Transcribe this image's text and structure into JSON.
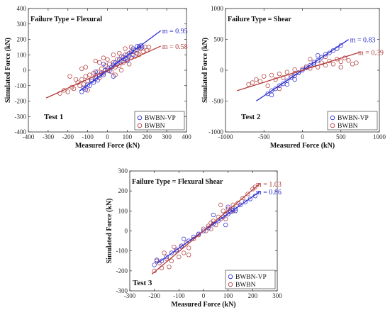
{
  "chart_data": [
    {
      "type": "scatter",
      "panel": "Test 1",
      "test_label": "Test 1",
      "annotation": "Failure Type = Flexural",
      "xlabel": "Measured Force (kN)",
      "ylabel": "Simulated Force (kN)",
      "xlim": [
        -400,
        400
      ],
      "ylim": [
        -400,
        400
      ],
      "xticks": [
        -400,
        -300,
        -200,
        -100,
        0,
        100,
        200,
        300,
        400
      ],
      "yticks": [
        -400,
        -300,
        -200,
        -100,
        0,
        100,
        200,
        300,
        400
      ],
      "legend": "bottom-right",
      "series": [
        {
          "name": "BWBN-VP",
          "color": "#2b2bd1",
          "slope_label": "m = 0.95",
          "fit": {
            "slope": 0.95,
            "intercept": 0,
            "x_range": [
              -140,
              270
            ]
          },
          "points": [
            [
              -130,
              -140
            ],
            [
              -120,
              -115
            ],
            [
              -110,
              -125
            ],
            [
              -100,
              -95
            ],
            [
              -90,
              -100
            ],
            [
              -80,
              -70
            ],
            [
              -70,
              -80
            ],
            [
              -60,
              -55
            ],
            [
              -50,
              -65
            ],
            [
              -40,
              -35
            ],
            [
              -30,
              -20
            ],
            [
              -20,
              -30
            ],
            [
              -10,
              0
            ],
            [
              0,
              10
            ],
            [
              10,
              -5
            ],
            [
              20,
              20
            ],
            [
              30,
              35
            ],
            [
              40,
              50
            ],
            [
              50,
              40
            ],
            [
              60,
              70
            ],
            [
              70,
              60
            ],
            [
              80,
              85
            ],
            [
              90,
              75
            ],
            [
              100,
              100
            ],
            [
              110,
              90
            ],
            [
              120,
              120
            ],
            [
              130,
              140
            ],
            [
              140,
              130
            ],
            [
              150,
              155
            ],
            [
              160,
              145
            ],
            [
              170,
              160
            ],
            [
              -60,
              -10
            ],
            [
              -20,
              40
            ],
            [
              30,
              -40
            ],
            [
              100,
              60
            ],
            [
              130,
              100
            ],
            [
              160,
              155
            ],
            [
              175,
              150
            ]
          ]
        },
        {
          "name": "BWBN",
          "color": "#b33a3a",
          "slope_label": "m = 0.58",
          "fit": {
            "slope": 0.58,
            "intercept": 0,
            "x_range": [
              -310,
              270
            ]
          },
          "points": [
            [
              -240,
              -150
            ],
            [
              -220,
              -130
            ],
            [
              -200,
              -140
            ],
            [
              -180,
              -110
            ],
            [
              -170,
              -120
            ],
            [
              -150,
              -80
            ],
            [
              -140,
              -100
            ],
            [
              -130,
              -60
            ],
            [
              -120,
              -90
            ],
            [
              -110,
              -40
            ],
            [
              -100,
              -70
            ],
            [
              -90,
              -30
            ],
            [
              -80,
              -60
            ],
            [
              -70,
              -20
            ],
            [
              -60,
              -40
            ],
            [
              -50,
              -10
            ],
            [
              -40,
              -50
            ],
            [
              -30,
              10
            ],
            [
              -20,
              -20
            ],
            [
              -10,
              30
            ],
            [
              0,
              0
            ],
            [
              10,
              40
            ],
            [
              20,
              -10
            ],
            [
              30,
              50
            ],
            [
              40,
              20
            ],
            [
              50,
              70
            ],
            [
              60,
              30
            ],
            [
              70,
              90
            ],
            [
              80,
              50
            ],
            [
              90,
              100
            ],
            [
              100,
              70
            ],
            [
              110,
              110
            ],
            [
              120,
              80
            ],
            [
              130,
              120
            ],
            [
              140,
              90
            ],
            [
              150,
              130
            ],
            [
              160,
              100
            ],
            [
              170,
              140
            ],
            [
              180,
              120
            ],
            [
              190,
              150
            ],
            [
              200,
              130
            ],
            [
              210,
              150
            ],
            [
              -190,
              -40
            ],
            [
              -130,
              10
            ],
            [
              -160,
              -60
            ],
            [
              -60,
              60
            ],
            [
              -20,
              80
            ],
            [
              40,
              -30
            ],
            [
              60,
              110
            ],
            [
              90,
              140
            ],
            [
              30,
              100
            ],
            [
              -100,
              -130
            ],
            [
              -110,
              20
            ],
            [
              -40,
              50
            ],
            [
              0,
              70
            ],
            [
              120,
              150
            ],
            [
              150,
              110
            ],
            [
              110,
              40
            ],
            [
              70,
              0
            ]
          ]
        }
      ]
    },
    {
      "type": "scatter",
      "panel": "Test 2",
      "test_label": "Test 2",
      "annotation": "Failure Type = Shear",
      "xlabel": "Measured Force (kN)",
      "ylabel": "Simulated Force (kN)",
      "xlim": [
        -1000,
        1000
      ],
      "ylim": [
        -1000,
        1000
      ],
      "xticks": [
        -1000,
        -500,
        0,
        500,
        1000
      ],
      "yticks": [
        -1000,
        -500,
        0,
        500,
        1000
      ],
      "legend": "bottom-right",
      "series": [
        {
          "name": "BWBN-VP",
          "color": "#2b2bd1",
          "slope_label": "m = 0.83",
          "fit": {
            "slope": 0.83,
            "intercept": 0,
            "x_range": [
              -600,
              600
            ]
          },
          "points": [
            [
              -450,
              -380
            ],
            [
              -400,
              -330
            ],
            [
              -350,
              -300
            ],
            [
              -300,
              -250
            ],
            [
              -250,
              -220
            ],
            [
              -200,
              -170
            ],
            [
              -150,
              -120
            ],
            [
              -100,
              -90
            ],
            [
              -50,
              -40
            ],
            [
              0,
              0
            ],
            [
              50,
              40
            ],
            [
              100,
              80
            ],
            [
              150,
              130
            ],
            [
              200,
              160
            ],
            [
              250,
              210
            ],
            [
              300,
              260
            ],
            [
              350,
              280
            ],
            [
              400,
              320
            ],
            [
              450,
              350
            ],
            [
              500,
              400
            ],
            [
              -200,
              -230
            ],
            [
              -100,
              -150
            ],
            [
              150,
              100
            ],
            [
              200,
              240
            ],
            [
              -400,
              -400
            ]
          ]
        },
        {
          "name": "BWBN",
          "color": "#b33a3a",
          "slope_label": "m = 0.39",
          "fit": {
            "slope": 0.39,
            "intercept": 0,
            "x_range": [
              -850,
              750
            ]
          },
          "points": [
            [
              -650,
              -200
            ],
            [
              -600,
              -150
            ],
            [
              -550,
              -180
            ],
            [
              -500,
              -100
            ],
            [
              -450,
              -250
            ],
            [
              -400,
              -80
            ],
            [
              -350,
              -150
            ],
            [
              -300,
              -60
            ],
            [
              -250,
              -120
            ],
            [
              -200,
              -30
            ],
            [
              -150,
              -90
            ],
            [
              -100,
              10
            ],
            [
              -50,
              -40
            ],
            [
              0,
              20
            ],
            [
              50,
              60
            ],
            [
              100,
              30
            ],
            [
              150,
              90
            ],
            [
              200,
              50
            ],
            [
              250,
              120
            ],
            [
              300,
              80
            ],
            [
              350,
              150
            ],
            [
              400,
              100
            ],
            [
              450,
              180
            ],
            [
              500,
              140
            ],
            [
              550,
              200
            ],
            [
              600,
              160
            ],
            [
              650,
              100
            ],
            [
              700,
              120
            ],
            [
              -700,
              -230
            ],
            [
              -300,
              -300
            ],
            [
              100,
              180
            ],
            [
              300,
              220
            ],
            [
              500,
              50
            ],
            [
              -100,
              -50
            ]
          ]
        }
      ]
    },
    {
      "type": "scatter",
      "panel": "Test 3",
      "test_label": "Test 3",
      "annotation": "Failure Type = Flexural Shear",
      "xlabel": "Measured Force (kN)",
      "ylabel": "Simulated Force (kN)",
      "xlim": [
        -300,
        300
      ],
      "ylim": [
        -300,
        300
      ],
      "xticks": [
        -300,
        -200,
        -100,
        0,
        100,
        200,
        300
      ],
      "yticks": [
        -300,
        -200,
        -100,
        0,
        100,
        200,
        300
      ],
      "legend": "bottom-right",
      "series": [
        {
          "name": "BWBN-VP",
          "color": "#2b2bd1",
          "slope_label": "m = 0.86",
          "fit": {
            "slope": 0.86,
            "intercept": 0,
            "x_range": [
              -190,
              230
            ]
          },
          "points": [
            [
              -190,
              -145
            ],
            [
              -170,
              -150
            ],
            [
              -150,
              -130
            ],
            [
              -130,
              -110
            ],
            [
              -110,
              -95
            ],
            [
              -90,
              -75
            ],
            [
              -80,
              -40
            ],
            [
              -60,
              -50
            ],
            [
              -40,
              -30
            ],
            [
              -20,
              -15
            ],
            [
              0,
              0
            ],
            [
              20,
              15
            ],
            [
              40,
              35
            ],
            [
              60,
              50
            ],
            [
              80,
              70
            ],
            [
              90,
              30
            ],
            [
              100,
              85
            ],
            [
              110,
              95
            ],
            [
              120,
              105
            ],
            [
              130,
              110
            ],
            [
              150,
              130
            ],
            [
              170,
              145
            ],
            [
              190,
              160
            ],
            [
              210,
              175
            ],
            [
              -200,
              -170
            ],
            [
              40,
              80
            ],
            [
              100,
              120
            ],
            [
              130,
              100
            ]
          ]
        },
        {
          "name": "BWBN",
          "color": "#b33a3a",
          "slope_label": "m = 1.03",
          "fit": {
            "slope": 1.03,
            "intercept": 0,
            "x_range": [
              -210,
              230
            ]
          },
          "points": [
            [
              -200,
              -200
            ],
            [
              -180,
              -160
            ],
            [
              -170,
              -185
            ],
            [
              -150,
              -140
            ],
            [
              -130,
              -150
            ],
            [
              -110,
              -100
            ],
            [
              -100,
              -130
            ],
            [
              -90,
              -80
            ],
            [
              -80,
              -110
            ],
            [
              -70,
              -60
            ],
            [
              -60,
              -85
            ],
            [
              -40,
              -40
            ],
            [
              -20,
              -20
            ],
            [
              0,
              10
            ],
            [
              10,
              0
            ],
            [
              20,
              25
            ],
            [
              30,
              10
            ],
            [
              40,
              50
            ],
            [
              50,
              30
            ],
            [
              60,
              70
            ],
            [
              70,
              60
            ],
            [
              80,
              100
            ],
            [
              90,
              85
            ],
            [
              100,
              110
            ],
            [
              110,
              95
            ],
            [
              120,
              130
            ],
            [
              140,
              140
            ],
            [
              160,
              165
            ],
            [
              180,
              185
            ],
            [
              200,
              210
            ],
            [
              210,
              220
            ],
            [
              -160,
              -110
            ],
            [
              -120,
              -80
            ],
            [
              -60,
              -120
            ],
            [
              30,
              40
            ],
            [
              70,
              130
            ],
            [
              90,
              60
            ],
            [
              120,
              100
            ],
            [
              -140,
              -180
            ],
            [
              -190,
              -150
            ]
          ]
        }
      ]
    }
  ]
}
